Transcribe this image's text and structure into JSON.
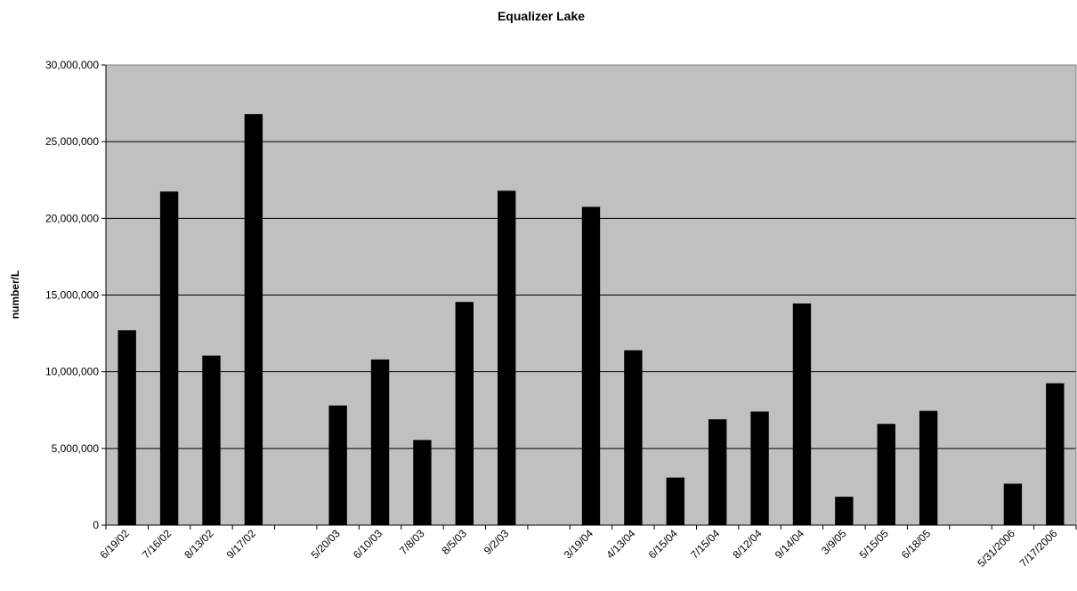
{
  "chart_data": {
    "type": "bar",
    "title": "Equalizer Lake",
    "xlabel": "",
    "ylabel": "number/L",
    "ylim": [
      0,
      30000000
    ],
    "yticks": [
      0,
      5000000,
      10000000,
      15000000,
      20000000,
      25000000,
      30000000
    ],
    "ytick_labels": [
      "0",
      "5,000,000",
      "10,000,000",
      "15,000,000",
      "20,000,000",
      "25,000,000",
      "30,000,000"
    ],
    "grid": true,
    "legend": "none",
    "categories": [
      "6/19/02",
      "7/16/02",
      "8/13/02",
      "9/17/02",
      "",
      "5/20/03",
      "6/10/03",
      "7/8/03",
      "8/5/03",
      "9/2/03",
      "",
      "3/19/04",
      "4/13/04",
      "6/15/04",
      "7/15/04",
      "8/12/04",
      "9/14/04",
      "3/9/05",
      "5/15/05",
      "6/18/05",
      "",
      "5/31/2006",
      "7/17/2006"
    ],
    "values": [
      12700000,
      21750000,
      11050000,
      26800000,
      null,
      7800000,
      10800000,
      5550000,
      14550000,
      21800000,
      null,
      20750000,
      11400000,
      3100000,
      6900000,
      7400000,
      14450000,
      1850000,
      6600000,
      7450000,
      null,
      2700000,
      9250000
    ],
    "colors": {
      "plot_background": "#c0c0c0",
      "bar": "#000000",
      "grid": "#000000"
    }
  }
}
